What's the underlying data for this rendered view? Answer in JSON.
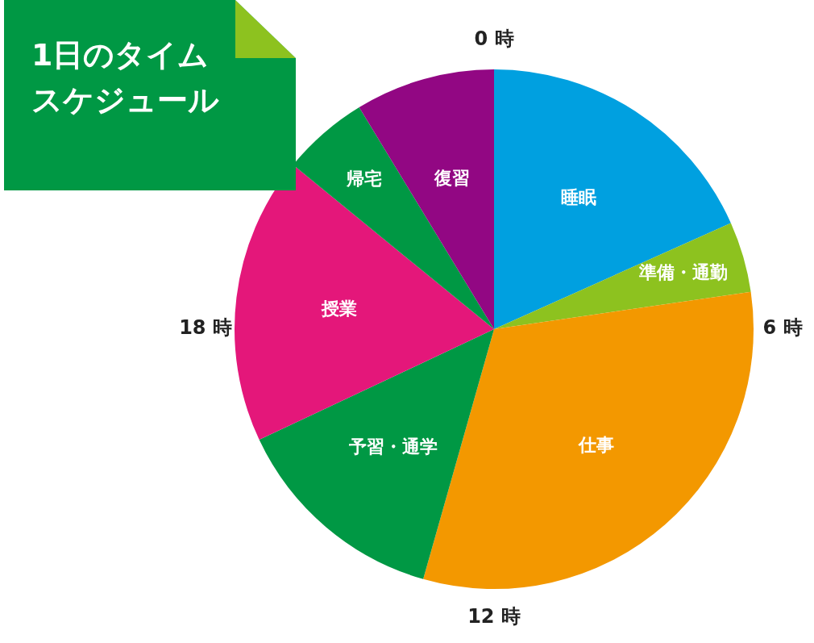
{
  "chart_data": {
    "type": "pie",
    "title": "1日のタイムスケジュール",
    "categories": [
      "睡眠",
      "準備・通勤",
      "仕事",
      "予習・通学",
      "授業",
      "帰宅",
      "復習"
    ],
    "values": [
      18.3,
      4.4,
      31.7,
      13.6,
      17.9,
      5.4,
      8.7
    ],
    "colors": [
      "#00a0e0",
      "#8dc21f",
      "#f39800",
      "#009844",
      "#e4177a",
      "#009844",
      "#920783"
    ],
    "annotations": [
      "0 時",
      "6 時",
      "12 時",
      "18 時"
    ],
    "legend": false
  }
}
